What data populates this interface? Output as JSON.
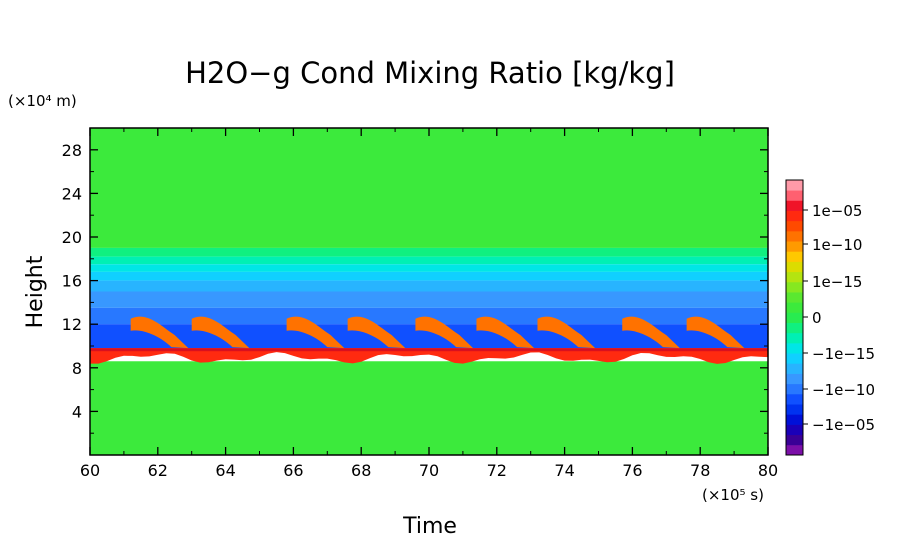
{
  "chart_data": {
    "type": "heatmap",
    "title": "H2O−g Cond Mixing Ratio [kg/kg]",
    "xlabel": "Time",
    "ylabel": "Height",
    "x_unit_label": "(×10⁵ s)",
    "y_unit_label": "(×10⁴ m)",
    "xlim": [
      60,
      80
    ],
    "ylim": [
      0,
      30
    ],
    "x_ticks": [
      "60",
      "62",
      "64",
      "66",
      "68",
      "70",
      "72",
      "74",
      "76",
      "78",
      "80"
    ],
    "y_ticks": [
      "4",
      "8",
      "12",
      "16",
      "20",
      "24",
      "28"
    ],
    "colorbar": {
      "labels": [
        "1e−05",
        "1e−10",
        "1e−15",
        "0",
        "−1e−15",
        "−1e−10",
        "−1e−05"
      ],
      "colors": [
        "#7b0fa8",
        "#3a0096",
        "#1a00b8",
        "#0010d8",
        "#0032f0",
        "#1050ff",
        "#2878ff",
        "#3898ff",
        "#28b4ff",
        "#10d0ff",
        "#00e6e6",
        "#00f0b4",
        "#10f080",
        "#28ec50",
        "#3cea3c",
        "#5ae830",
        "#86e820",
        "#b4e410",
        "#dcdc00",
        "#ffc800",
        "#ff9a00",
        "#ff7200",
        "#ff4a00",
        "#ff2a10",
        "#f01428",
        "#ff6070",
        "#ff9aa8"
      ]
    },
    "bands": [
      {
        "y": [
          0,
          8.6
        ],
        "color": "#3cea3c"
      },
      {
        "y": [
          19.0,
          30
        ],
        "color": "#3cea3c"
      },
      {
        "y": [
          18.2,
          19.0
        ],
        "color": "#10f080"
      },
      {
        "y": [
          17.5,
          18.2
        ],
        "color": "#00f0b4"
      },
      {
        "y": [
          16.8,
          17.5
        ],
        "color": "#00e6e6"
      },
      {
        "y": [
          16.0,
          16.8
        ],
        "color": "#10d0ff"
      },
      {
        "y": [
          15.0,
          16.0
        ],
        "color": "#28b4ff"
      },
      {
        "y": [
          13.5,
          15.0
        ],
        "color": "#3898ff"
      },
      {
        "y": [
          12.0,
          13.5
        ],
        "color": "#2878ff"
      },
      {
        "y": [
          9.8,
          12.0
        ],
        "color": "#1050ff"
      }
    ],
    "features": {
      "tropopause_height": 9.7,
      "tropopause_color": "#ff2a10",
      "plume_starts": [
        61.2,
        63.0,
        65.8,
        67.6,
        69.6,
        71.4,
        73.2,
        75.7,
        77.6
      ],
      "plume_color": "#ff7200"
    }
  }
}
